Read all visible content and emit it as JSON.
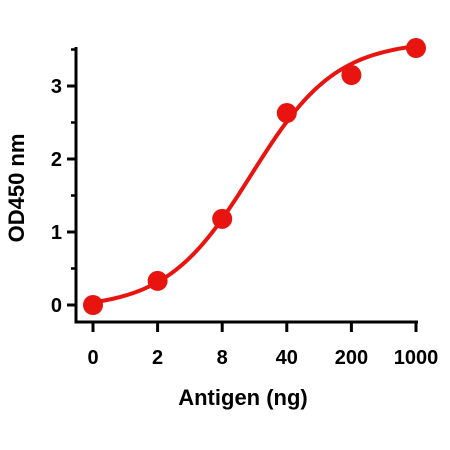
{
  "chart_data": {
    "type": "line",
    "title": "",
    "xlabel": "Antigen (ng)",
    "ylabel": "OD450 nm",
    "x_categories": [
      "0",
      "2",
      "8",
      "40",
      "200",
      "1000"
    ],
    "y_ticks": [
      0,
      1,
      2,
      3
    ],
    "ylim": [
      0,
      3.5
    ],
    "grid": false,
    "legend": "none",
    "series": [
      {
        "color": "#e8140f",
        "marker": "circle",
        "fit": "sigmoid",
        "points": [
          {
            "x": "0",
            "y": 0.0
          },
          {
            "x": "2",
            "y": 0.33
          },
          {
            "x": "8",
            "y": 1.18
          },
          {
            "x": "40",
            "y": 2.63
          },
          {
            "x": "200",
            "y": 3.15
          },
          {
            "x": "1000",
            "y": 3.52
          }
        ]
      }
    ]
  }
}
